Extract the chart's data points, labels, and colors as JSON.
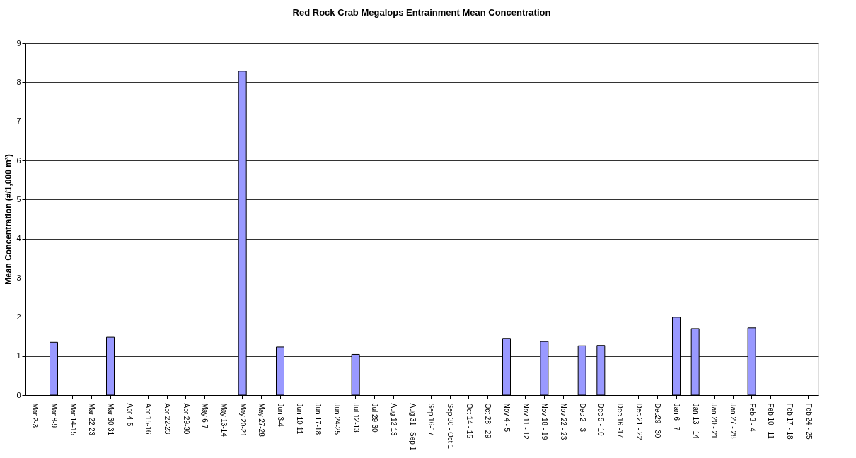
{
  "chart_data": {
    "type": "bar",
    "title": "Red Rock Crab Megalops Entrainment Mean Concentration",
    "ylabel": "Mean Concentration (#/1,000 m³)",
    "categories": [
      "Mar 2-3",
      "Mar 8-9",
      "Mar 14-15",
      "Mar 22-23",
      "Mar 30-31",
      "Apr 4-5",
      "Apr 15-16",
      "Apr 22-23",
      "Apr 29-30",
      "May 6-7",
      "May 13-14",
      "May 20-21",
      "May 27-28",
      "Jun 3-4",
      "Jun 10-11",
      "Jun 17-18",
      "Jun 24-25",
      "Jul 12-13",
      "Jul 29-30",
      "Aug 12-13",
      "Aug 31 - Sep 1",
      "Sep 16-17",
      "Sep 30 - Oct 1",
      "Oct 14 - 15",
      "Oct 28 - 29",
      "Nov 4 - 5",
      "Nov 11 - 12",
      "Nov 18 - 19",
      "Nov 22 - 23",
      "Dec 2 - 3",
      "Dec 9 - 10",
      "Dec 16 -17",
      "Dec 21 - 22",
      "Dec29 - 30",
      "Jan 6 - 7",
      "Jan 13 - 14",
      "Jan 20 - 21",
      "Jan 27 - 28",
      "Feb 3 - 4",
      "Feb 10 - 11",
      "Feb 17 - 18",
      "Feb 24 - 25"
    ],
    "values": [
      null,
      1.35,
      null,
      null,
      1.48,
      null,
      null,
      null,
      null,
      null,
      null,
      8.28,
      null,
      1.23,
      null,
      null,
      null,
      1.04,
      null,
      null,
      null,
      null,
      null,
      null,
      null,
      1.45,
      null,
      1.37,
      null,
      1.26,
      1.27,
      null,
      null,
      null,
      1.99,
      1.7,
      null,
      null,
      1.72,
      null,
      null,
      null
    ],
    "color": "#9999ff",
    "ylim": [
      0,
      9
    ],
    "yticks": [
      0,
      1,
      2,
      3,
      4,
      5,
      6,
      7,
      8,
      9
    ],
    "grid": "y"
  }
}
